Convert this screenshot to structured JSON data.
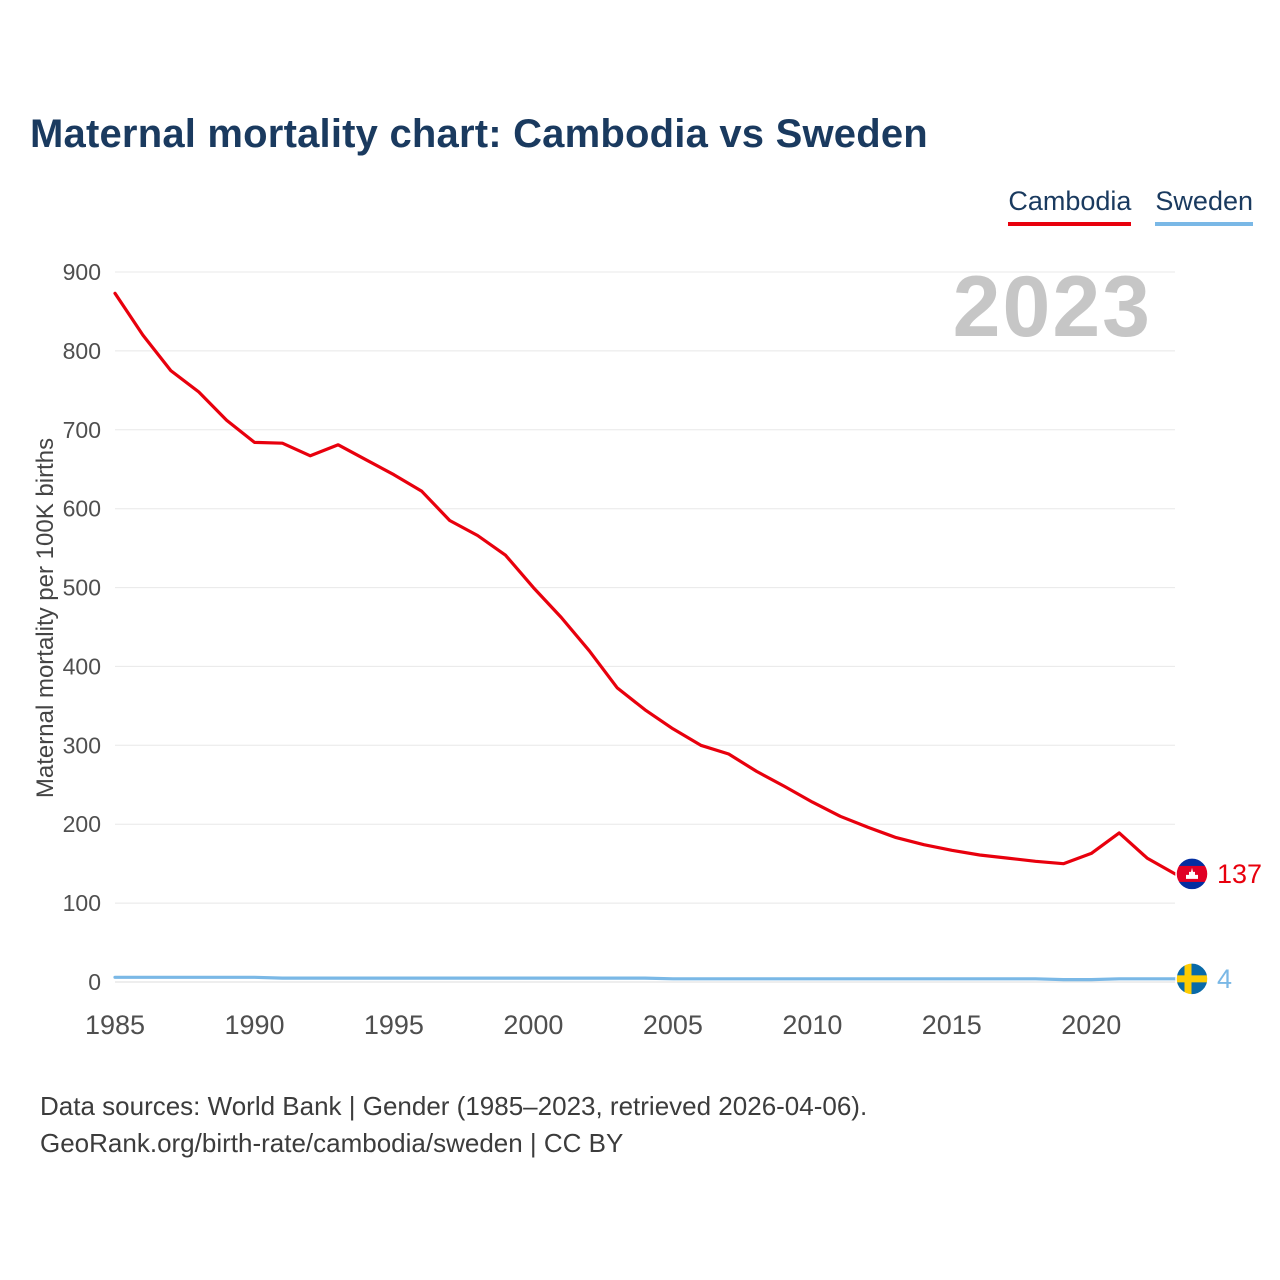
{
  "header": {
    "title": "Maternal mortality chart: Cambodia vs Sweden"
  },
  "legend": {
    "cambodia": "Cambodia",
    "sweden": "Sweden"
  },
  "watermark": "2023",
  "chart_data": {
    "type": "line",
    "title": "Maternal mortality chart: Cambodia vs Sweden",
    "ylabel": "Maternal mortality per 100K births",
    "xlabel": "",
    "ylim": [
      0,
      900
    ],
    "yticks": [
      0,
      100,
      200,
      300,
      400,
      500,
      600,
      700,
      800,
      900
    ],
    "xticks": [
      1985,
      1990,
      1995,
      2000,
      2005,
      2010,
      2015,
      2020
    ],
    "grid": true,
    "legend_position": "top-right",
    "x": [
      1985,
      1986,
      1987,
      1988,
      1989,
      1990,
      1991,
      1992,
      1993,
      1994,
      1995,
      1996,
      1997,
      1998,
      1999,
      2000,
      2001,
      2002,
      2003,
      2004,
      2005,
      2006,
      2007,
      2008,
      2009,
      2010,
      2011,
      2012,
      2013,
      2014,
      2015,
      2016,
      2017,
      2018,
      2019,
      2020,
      2021,
      2022,
      2023
    ],
    "series": [
      {
        "name": "Cambodia",
        "color": "#e8000d",
        "icon": "cambodia",
        "end_label": "137",
        "values": [
          873,
          820,
          775,
          748,
          712,
          684,
          683,
          667,
          681,
          662,
          643,
          622,
          585,
          566,
          541,
          500,
          462,
          420,
          373,
          345,
          321,
          300,
          289,
          267,
          248,
          228,
          210,
          196,
          183,
          174,
          167,
          161,
          157,
          153,
          150,
          163,
          189,
          157,
          137
        ]
      },
      {
        "name": "Sweden",
        "color": "#7ab8e6",
        "icon": "sweden",
        "end_label": "4",
        "values": [
          6,
          6,
          6,
          6,
          6,
          6,
          5,
          5,
          5,
          5,
          5,
          5,
          5,
          5,
          5,
          5,
          5,
          5,
          5,
          5,
          4,
          4,
          4,
          4,
          4,
          4,
          4,
          4,
          4,
          4,
          4,
          4,
          4,
          4,
          3,
          3,
          4,
          4,
          4
        ]
      }
    ]
  },
  "footer": {
    "line1": "Data sources: World Bank | Gender (1985–2023, retrieved 2026-04-06).",
    "line2": "GeoRank.org/birth-rate/cambodia/sweden | CC BY"
  }
}
